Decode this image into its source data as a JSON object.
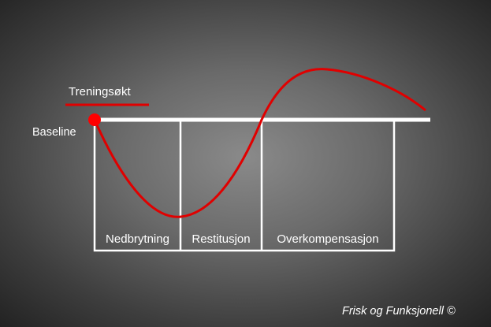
{
  "diagram": {
    "session_label": "Treningsøkt",
    "baseline_label": "Baseline",
    "phases": [
      {
        "label": "Nedbrytning"
      },
      {
        "label": "Restitusjon"
      },
      {
        "label": "Overkompensasjon"
      }
    ],
    "credit": "Frisk og Funksjonell ©"
  },
  "colors": {
    "curve": "#e00000",
    "marker": "#ff0000",
    "lines": "#ffffff",
    "background_center": "#8a8a8a",
    "background_edge": "#1e1e1e"
  }
}
